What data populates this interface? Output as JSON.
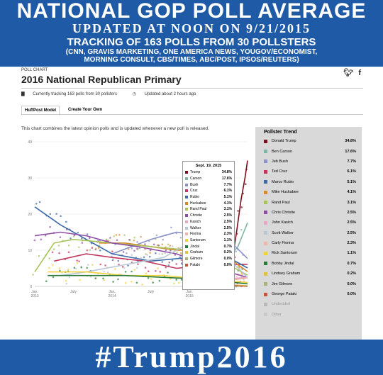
{
  "banner": {
    "line1": "NATIONAL GOP POLL AVERAGE",
    "line2": "UPDATED AT NOON ON 9/21/2015",
    "line3": "TRACKING OF 163 POLLS FROM 30 POLLSTERS",
    "line4": "(CNN, GRAVIS MARKETING, ONE AMERICA NEWS, YOUGOV/ECONOMIST,",
    "line5": "MORNING CONSULT, CBS/TIMES, ABC/POST, IPSOS/REUTERS)"
  },
  "hashtag": "#Trump2016",
  "card": {
    "eyebrow": "POLL CHART",
    "title": "2016 National Republican Primary",
    "meta_tracking": "Currently tracking 163 polls from 30 pollsters",
    "meta_updated": "Updated about 2 hours ago",
    "tabs": [
      "HuffPost Model",
      "Create Your Own"
    ],
    "description": "This chart combines the latest opinion polls and is updated whenever a new poll is released.",
    "icons": [
      "twitter-icon",
      "facebook-icon"
    ]
  },
  "chart_data": {
    "type": "line",
    "title": "2016 National Republican Primary",
    "xlabel": "",
    "ylabel": "",
    "ylim": [
      0,
      40
    ],
    "y_ticks": [
      "40",
      "30",
      "20",
      "10",
      "0"
    ],
    "x_ticks": [
      "Jan. 2013",
      "July",
      "Jan. 2014",
      "July",
      "Jan. 2015"
    ],
    "x_domain": [
      0,
      33
    ],
    "x_tick_positions": [
      0,
      6,
      12,
      18,
      24
    ],
    "grid": true,
    "legend_position": "right",
    "legend_title": "Pollster Trend",
    "tooltip_date": "Sept. 19, 2015",
    "series": [
      {
        "name": "Donald Trump",
        "short": "Trump",
        "value": "34.8%",
        "color": "#7a0f1c",
        "points": [
          [
            29.5,
            2
          ],
          [
            30.5,
            6
          ],
          [
            31.3,
            15
          ],
          [
            32,
            24
          ],
          [
            32.6,
            30
          ],
          [
            33,
            34.8
          ]
        ]
      },
      {
        "name": "Ben Carson",
        "short": "Carson",
        "value": "17.6%",
        "color": "#7fb5a5",
        "points": [
          [
            24,
            5
          ],
          [
            26,
            6.5
          ],
          [
            28,
            7
          ],
          [
            30,
            8
          ],
          [
            31.5,
            11
          ],
          [
            33,
            17.6
          ]
        ]
      },
      {
        "name": "Jeb Bush",
        "short": "Bush",
        "value": "7.7%",
        "color": "#8a92c9",
        "points": [
          [
            12,
            9
          ],
          [
            15,
            11
          ],
          [
            18,
            13
          ],
          [
            22,
            15
          ],
          [
            26,
            14
          ],
          [
            30,
            13
          ],
          [
            33,
            7.7
          ]
        ]
      },
      {
        "name": "Ted Cruz",
        "short": "Cruz",
        "value": "6.1%",
        "color": "#c0385d",
        "points": [
          [
            3,
            7
          ],
          [
            8,
            9
          ],
          [
            12,
            8
          ],
          [
            17,
            7
          ],
          [
            22,
            5
          ],
          [
            27,
            6
          ],
          [
            33,
            6.1
          ]
        ]
      },
      {
        "name": "Marco Rubio",
        "short": "Rubio",
        "value": "5.1%",
        "color": "#3e6aa8",
        "points": [
          [
            0,
            22
          ],
          [
            4,
            17
          ],
          [
            8,
            13
          ],
          [
            12,
            9
          ],
          [
            18,
            7
          ],
          [
            24,
            8
          ],
          [
            28,
            10
          ],
          [
            33,
            5.1
          ]
        ]
      },
      {
        "name": "Mike Huckabee",
        "short": "Huckabee",
        "value": "4.1%",
        "color": "#d88a2e",
        "points": [
          [
            10,
            12
          ],
          [
            14,
            12
          ],
          [
            18,
            11
          ],
          [
            22,
            10
          ],
          [
            26,
            10
          ],
          [
            30,
            8
          ],
          [
            33,
            4.1
          ]
        ]
      },
      {
        "name": "Rand Paul",
        "short": "Rand Paul",
        "value": "3.1%",
        "color": "#a7c45a",
        "points": [
          [
            0,
            4
          ],
          [
            3,
            12
          ],
          [
            6,
            13
          ],
          [
            12,
            12
          ],
          [
            18,
            11
          ],
          [
            24,
            10
          ],
          [
            28,
            8
          ],
          [
            33,
            3.1
          ]
        ]
      },
      {
        "name": "Chris Christie",
        "short": "Christie",
        "value": "2.5%",
        "color": "#8e4ea6",
        "points": [
          [
            0,
            14
          ],
          [
            4,
            15
          ],
          [
            8,
            14
          ],
          [
            12,
            12
          ],
          [
            16,
            11
          ],
          [
            22,
            9
          ],
          [
            28,
            5
          ],
          [
            33,
            2.5
          ]
        ]
      },
      {
        "name": "John Kasich",
        "short": "Kasich",
        "value": "2.5%",
        "color": "#e8a8c8",
        "points": [
          [
            26,
            1
          ],
          [
            29,
            2
          ],
          [
            33,
            2.5
          ]
        ]
      },
      {
        "name": "Scott Walker",
        "short": "Walker",
        "value": "2.5%",
        "color": "#b7c7d6",
        "points": [
          [
            4,
            3
          ],
          [
            8,
            4
          ],
          [
            14,
            6
          ],
          [
            20,
            8
          ],
          [
            25,
            13
          ],
          [
            28,
            12
          ],
          [
            31,
            6
          ],
          [
            33,
            2.5
          ]
        ]
      },
      {
        "name": "Carly Fiorina",
        "short": "Fiorina",
        "value": "2.3%",
        "color": "#f0b7a6",
        "points": [
          [
            24,
            1
          ],
          [
            29,
            1.5
          ],
          [
            33,
            2.3
          ]
        ]
      },
      {
        "name": "Rick Santorum",
        "short": "Santorum",
        "value": "1.1%",
        "color": "#f2d23a",
        "points": [
          [
            2,
            4
          ],
          [
            8,
            4
          ],
          [
            14,
            3
          ],
          [
            20,
            3
          ],
          [
            26,
            2
          ],
          [
            33,
            1.1
          ]
        ]
      },
      {
        "name": "Bobby Jindal",
        "short": "Jindal",
        "value": "0.7%",
        "color": "#2a7a3b",
        "points": [
          [
            2,
            3
          ],
          [
            8,
            3
          ],
          [
            14,
            3
          ],
          [
            20,
            2.5
          ],
          [
            26,
            2
          ],
          [
            33,
            0.7
          ]
        ]
      },
      {
        "name": "Lindsey Graham",
        "short": "Graham",
        "value": "0.2%",
        "color": "#e0c24a",
        "points": [
          [
            24,
            1
          ],
          [
            29,
            0.6
          ],
          [
            33,
            0.2
          ]
        ]
      },
      {
        "name": "Jim Gilmore",
        "short": "Gilmore",
        "value": "0.0%",
        "color": "#b0b07a",
        "points": [
          [
            30,
            0.2
          ],
          [
            33,
            0
          ]
        ]
      },
      {
        "name": "George Pataki",
        "short": "Pataki",
        "value": "0.0%",
        "color": "#c15a3a",
        "points": [
          [
            26,
            0.5
          ],
          [
            30,
            0.3
          ],
          [
            33,
            0
          ]
        ]
      }
    ],
    "extra_legend": [
      {
        "name": "Undecided",
        "color": "#b8b8b8"
      },
      {
        "name": "Other",
        "color": "#c8c8c8"
      }
    ]
  }
}
